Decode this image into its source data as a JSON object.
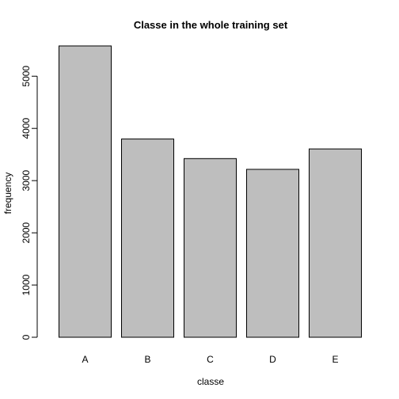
{
  "chart_data": {
    "type": "bar",
    "title": "Classe in the whole training set",
    "xlabel": "classe",
    "ylabel": "frequency",
    "categories": [
      "A",
      "B",
      "C",
      "D",
      "E"
    ],
    "values": [
      5580,
      3797,
      3422,
      3216,
      3607
    ],
    "ylim": [
      0,
      5580
    ],
    "yticks": [
      0,
      1000,
      2000,
      3000,
      4000,
      5000
    ],
    "bar_color": "#bebebe",
    "grid": false,
    "legend": false
  }
}
